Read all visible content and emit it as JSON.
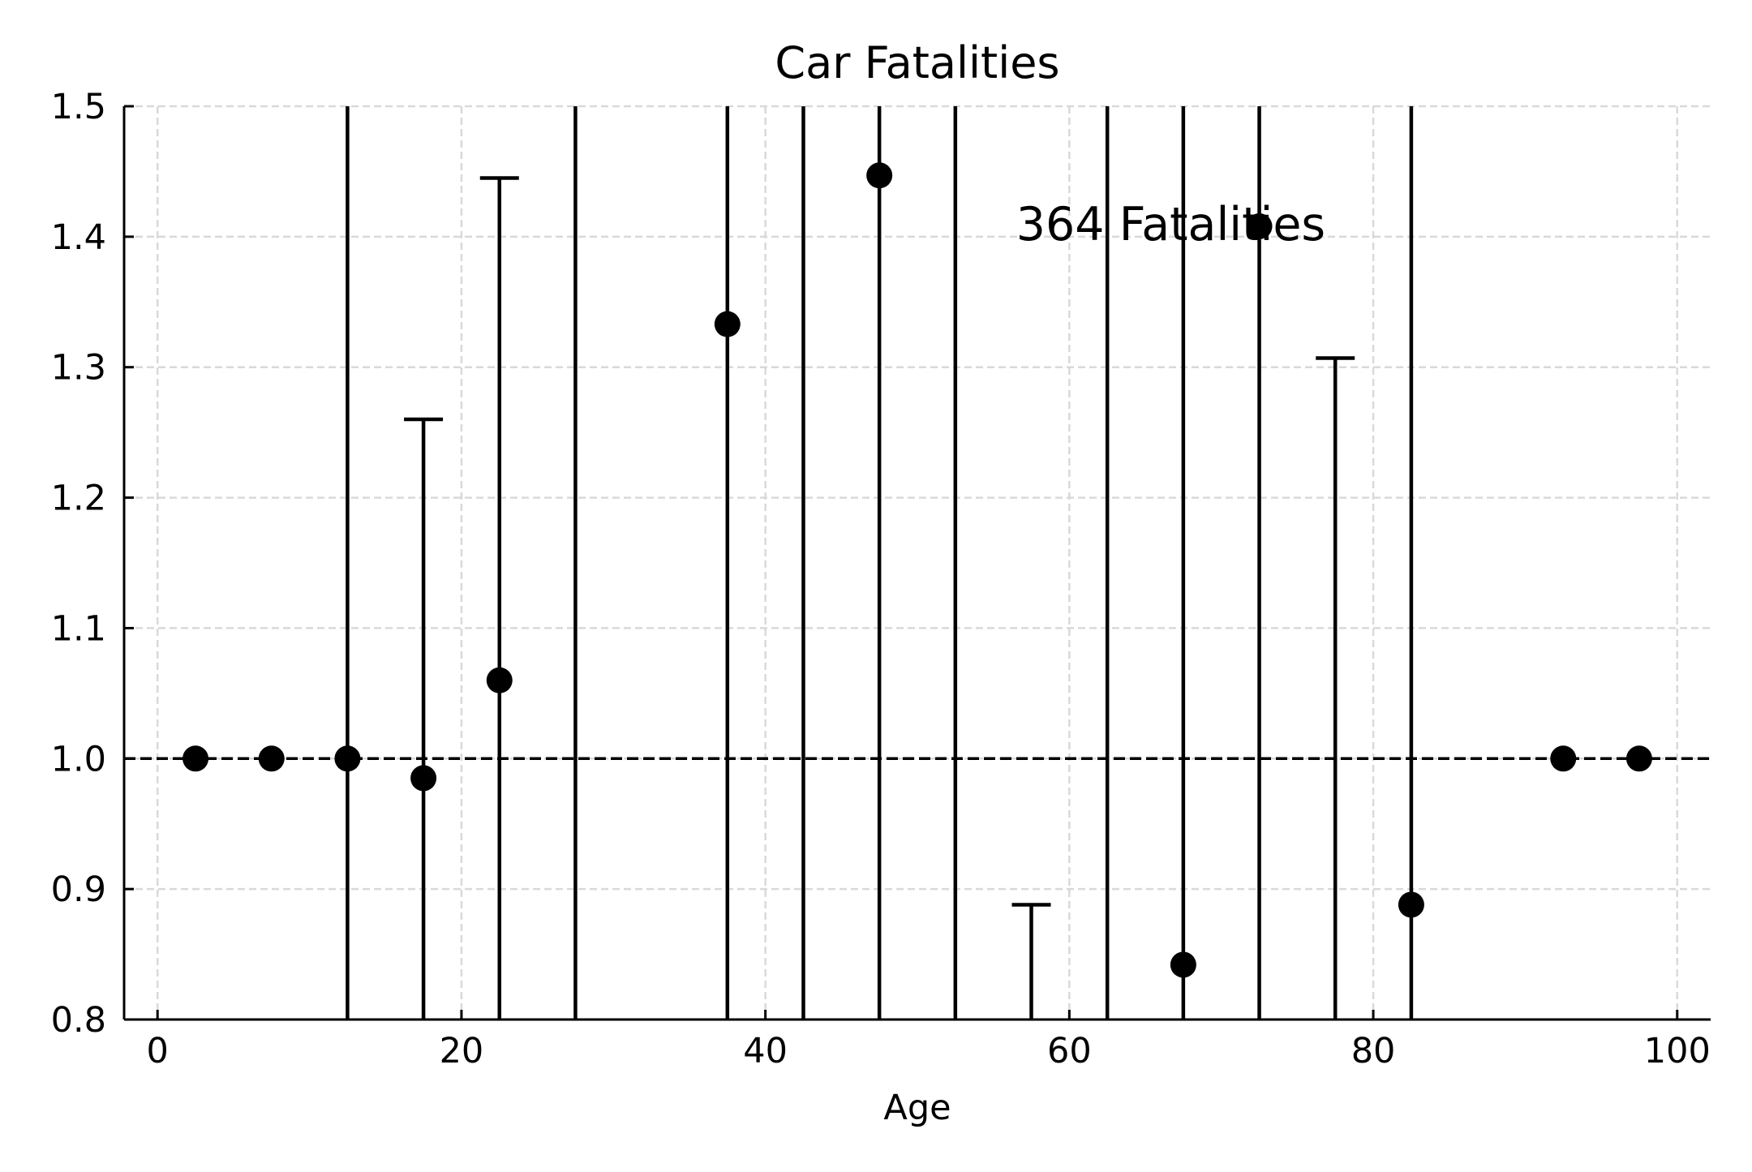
{
  "chart_data": {
    "type": "scatter",
    "title": "Car Fatalities",
    "xlabel": "Age",
    "ylabel": "",
    "xlim": [
      -2.2,
      102.2
    ],
    "ylim": [
      0.8,
      1.5
    ],
    "xticks": [
      0,
      20,
      40,
      60,
      80,
      100
    ],
    "yticks": [
      0.8,
      0.9,
      1.0,
      1.1,
      1.2,
      1.3,
      1.4,
      1.5
    ],
    "xtick_labels": [
      "0",
      "20",
      "40",
      "60",
      "80",
      "100"
    ],
    "ytick_labels": [
      "0.8",
      "0.9",
      "1.0",
      "1.1",
      "1.2",
      "1.3",
      "1.4",
      "1.5"
    ],
    "grid": true,
    "reference_line": 1.0,
    "annotation": {
      "text": "364 Fatalities",
      "x": 56.5,
      "y": 1.41
    },
    "colors": {
      "marker": "#000000",
      "grid": "#d9d9d9",
      "axis": "#000000"
    },
    "points": [
      {
        "x": 2.5,
        "y": 1.0,
        "err_low": 1.0,
        "err_high": 1.0
      },
      {
        "x": 7.5,
        "y": 1.0,
        "err_low": 1.0,
        "err_high": 1.0
      },
      {
        "x": 12.5,
        "y": 1.0,
        "err_low": 0.8,
        "err_high": 1.5
      },
      {
        "x": 17.5,
        "y": 0.985,
        "err_low": 0.8,
        "err_high": 1.26
      },
      {
        "x": 22.5,
        "y": 1.06,
        "err_low": 0.8,
        "err_high": 1.445
      },
      {
        "x": 27.5,
        "y": null,
        "err_low": 0.8,
        "err_high": 1.5
      },
      {
        "x": 37.5,
        "y": 1.333,
        "err_low": 0.8,
        "err_high": 1.5
      },
      {
        "x": 42.5,
        "y": null,
        "err_low": 0.8,
        "err_high": 1.5
      },
      {
        "x": 47.5,
        "y": 1.447,
        "err_low": 0.8,
        "err_high": 1.5
      },
      {
        "x": 52.5,
        "y": null,
        "err_low": 0.8,
        "err_high": 1.5
      },
      {
        "x": 57.5,
        "y": null,
        "err_low": 0.8,
        "err_high": 0.888
      },
      {
        "x": 62.5,
        "y": null,
        "err_low": 0.8,
        "err_high": 1.5
      },
      {
        "x": 67.5,
        "y": 0.842,
        "err_low": 0.8,
        "err_high": 1.5
      },
      {
        "x": 72.5,
        "y": 1.408,
        "err_low": 0.8,
        "err_high": 1.5
      },
      {
        "x": 77.5,
        "y": null,
        "err_low": 0.8,
        "err_high": 1.307
      },
      {
        "x": 82.5,
        "y": 0.888,
        "err_low": 0.8,
        "err_high": 1.5
      },
      {
        "x": 92.5,
        "y": 1.0,
        "err_low": 1.0,
        "err_high": 1.0
      },
      {
        "x": 97.5,
        "y": 1.0,
        "err_low": 1.0,
        "err_high": 1.0
      }
    ]
  }
}
